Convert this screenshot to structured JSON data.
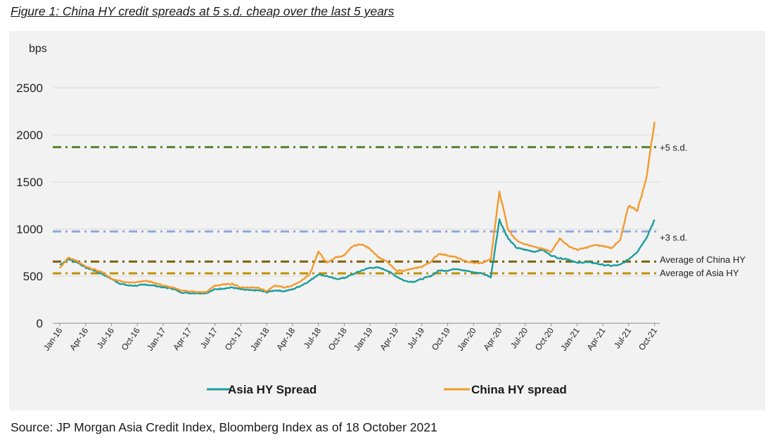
{
  "figure_title": "Figure 1: China HY credit spreads at 5 s.d. cheap over the last 5 years",
  "source": "Source: JP Morgan Asia Credit Index, Bloomberg Index as of 18 October 2021",
  "colors": {
    "asia": "#1a9c9c",
    "china": "#f39a2c",
    "plus5": "#548235",
    "plus3": "#8faadc",
    "avg_china": "#7f6000",
    "avg_asia": "#bf9000",
    "panel": "#f2f2f2"
  },
  "chart_data": {
    "type": "line",
    "title": "",
    "ylabel": "bps",
    "xlabel": "",
    "ylim": [
      0,
      2500
    ],
    "yticks": [
      0,
      500,
      1000,
      1500,
      2000,
      2500
    ],
    "grid": true,
    "legend_position": "bottom",
    "x_tick_labels": [
      "Jan-16",
      "Apr-16",
      "Jul-16",
      "Oct-16",
      "Jan-17",
      "Apr-17",
      "Jul-17",
      "Oct-17",
      "Jan-18",
      "Apr-18",
      "Jul-18",
      "Oct-18",
      "Jan-19",
      "Apr-19",
      "Jul-19",
      "Oct-19",
      "Jan-20",
      "Apr-20",
      "Jul-20",
      "Oct-20",
      "Jan-21",
      "Apr-21",
      "Jul-21",
      "Oct-21"
    ],
    "reference_lines": [
      {
        "label": "+5 s.d.",
        "value": 1870,
        "style": "dash-dot",
        "color_key": "plus5"
      },
      {
        "label": "+3 s.d.",
        "value": 975,
        "style": "dash-dot",
        "color_key": "plus3"
      },
      {
        "label": "Average of China HY",
        "value": 655,
        "style": "dash-dot",
        "color_key": "avg_china"
      },
      {
        "label": "Average of Asia HY",
        "value": 530,
        "style": "dash-dot",
        "color_key": "avg_asia"
      }
    ],
    "series": [
      {
        "name": "Asia HY Spread",
        "color_key": "asia",
        "x": [
          "2016-01",
          "2016-02",
          "2016-03",
          "2016-04",
          "2016-05",
          "2016-06",
          "2016-07",
          "2016-08",
          "2016-09",
          "2016-10",
          "2016-11",
          "2016-12",
          "2017-01",
          "2017-02",
          "2017-03",
          "2017-04",
          "2017-05",
          "2017-06",
          "2017-07",
          "2017-08",
          "2017-09",
          "2017-10",
          "2017-11",
          "2017-12",
          "2018-01",
          "2018-02",
          "2018-03",
          "2018-04",
          "2018-05",
          "2018-06",
          "2018-07",
          "2018-08",
          "2018-09",
          "2018-10",
          "2018-11",
          "2018-12",
          "2019-01",
          "2019-02",
          "2019-03",
          "2019-04",
          "2019-05",
          "2019-06",
          "2019-07",
          "2019-08",
          "2019-09",
          "2019-10",
          "2019-11",
          "2019-12",
          "2020-01",
          "2020-02",
          "2020-03",
          "2020-04",
          "2020-05",
          "2020-06",
          "2020-07",
          "2020-08",
          "2020-09",
          "2020-10",
          "2020-11",
          "2020-12",
          "2021-01",
          "2021-02",
          "2021-03",
          "2021-04",
          "2021-05",
          "2021-06",
          "2021-07",
          "2021-08",
          "2021-09",
          "2021-10"
        ],
        "values": [
          620,
          680,
          650,
          590,
          560,
          520,
          470,
          420,
          400,
          400,
          410,
          400,
          380,
          370,
          330,
          320,
          320,
          320,
          360,
          370,
          380,
          360,
          350,
          350,
          330,
          350,
          340,
          360,
          400,
          450,
          520,
          500,
          470,
          480,
          520,
          560,
          590,
          590,
          560,
          500,
          450,
          440,
          470,
          500,
          560,
          560,
          580,
          560,
          540,
          530,
          490,
          1100,
          900,
          800,
          780,
          760,
          780,
          720,
          690,
          680,
          640,
          650,
          640,
          620,
          610,
          620,
          680,
          760,
          900,
          1100
        ]
      },
      {
        "name": "China HY spread",
        "color_key": "china",
        "x": [
          "2016-01",
          "2016-02",
          "2016-03",
          "2016-04",
          "2016-05",
          "2016-06",
          "2016-07",
          "2016-08",
          "2016-09",
          "2016-10",
          "2016-11",
          "2016-12",
          "2017-01",
          "2017-02",
          "2017-03",
          "2017-04",
          "2017-05",
          "2017-06",
          "2017-07",
          "2017-08",
          "2017-09",
          "2017-10",
          "2017-11",
          "2017-12",
          "2018-01",
          "2018-02",
          "2018-03",
          "2018-04",
          "2018-05",
          "2018-06",
          "2018-07",
          "2018-08",
          "2018-09",
          "2018-10",
          "2018-11",
          "2018-12",
          "2019-01",
          "2019-02",
          "2019-03",
          "2019-04",
          "2019-05",
          "2019-06",
          "2019-07",
          "2019-08",
          "2019-09",
          "2019-10",
          "2019-11",
          "2019-12",
          "2020-01",
          "2020-02",
          "2020-03",
          "2020-04",
          "2020-05",
          "2020-06",
          "2020-07",
          "2020-08",
          "2020-09",
          "2020-10",
          "2020-11",
          "2020-12",
          "2021-01",
          "2021-02",
          "2021-03",
          "2021-04",
          "2021-05",
          "2021-06",
          "2021-07",
          "2021-08",
          "2021-09",
          "2021-10"
        ],
        "values": [
          580,
          700,
          660,
          600,
          570,
          540,
          470,
          450,
          430,
          440,
          450,
          430,
          400,
          380,
          350,
          340,
          330,
          330,
          400,
          410,
          420,
          380,
          380,
          380,
          340,
          400,
          380,
          400,
          450,
          520,
          760,
          640,
          700,
          720,
          820,
          840,
          790,
          700,
          650,
          560,
          560,
          580,
          600,
          650,
          740,
          720,
          700,
          660,
          640,
          640,
          680,
          1400,
          1000,
          880,
          840,
          810,
          790,
          760,
          900,
          820,
          780,
          800,
          830,
          820,
          800,
          880,
          1250,
          1200,
          1520,
          2140
        ]
      }
    ]
  },
  "legend": {
    "asia_label": "Asia HY Spread",
    "china_label": "China HY spread"
  }
}
